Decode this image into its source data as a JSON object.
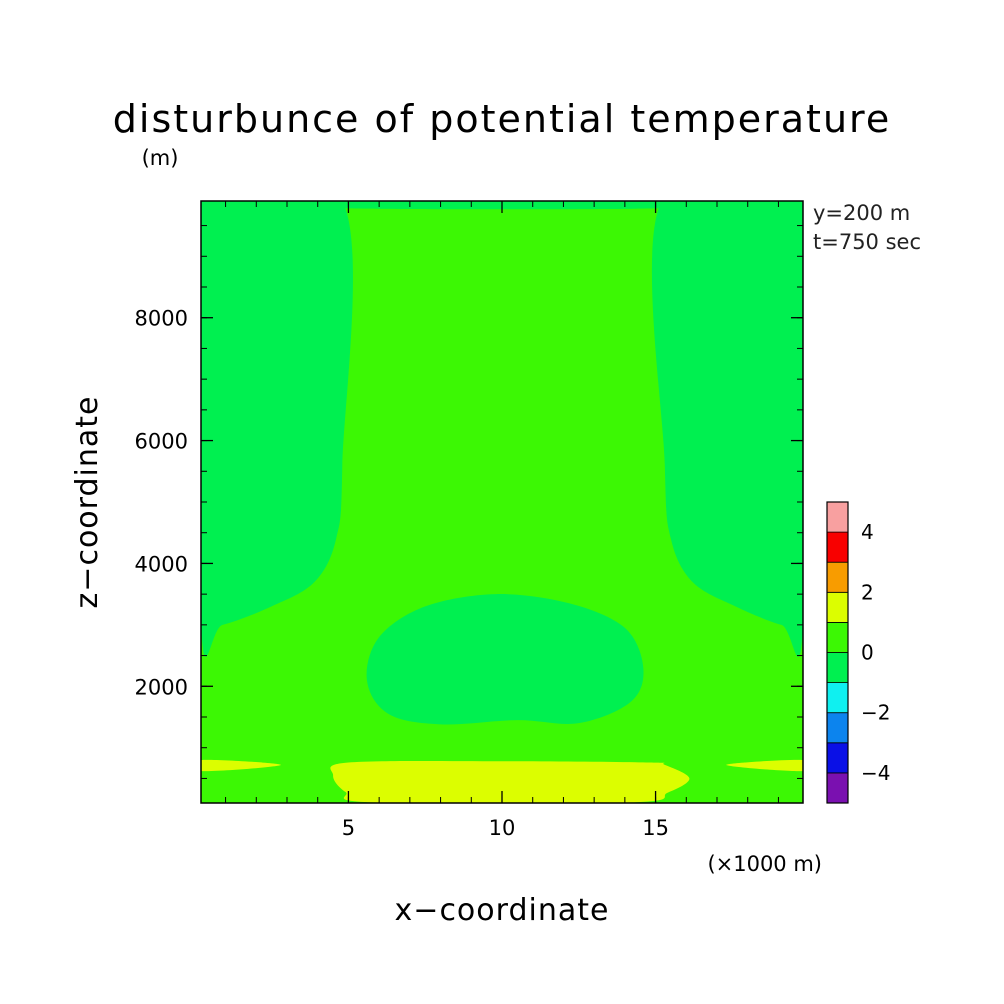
{
  "chart_data": {
    "type": "heatmap",
    "title": "disturbunce of potential temperature",
    "ylabel": "z−coordinate",
    "y_unit": "(m)",
    "xlabel": "x−coordinate",
    "x_unit": "(×1000 m)",
    "annotations": [
      "y=200 m",
      "t=750 sec"
    ],
    "xlim": [
      0.2,
      19.8
    ],
    "ylim": [
      100,
      9900
    ],
    "x_ticks": [
      {
        "value": 5,
        "label": "5"
      },
      {
        "value": 10,
        "label": "10"
      },
      {
        "value": 15,
        "label": "15"
      }
    ],
    "y_ticks": [
      {
        "value": 2000,
        "label": "2000"
      },
      {
        "value": 4000,
        "label": "4000"
      },
      {
        "value": 6000,
        "label": "6000"
      },
      {
        "value": 8000,
        "label": "8000"
      }
    ],
    "colorbar": {
      "levels": [
        {
          "from": -5,
          "to": -4,
          "color": "#7a10b0"
        },
        {
          "from": -4,
          "to": -3,
          "color": "#0a10e6"
        },
        {
          "from": -3,
          "to": -2,
          "color": "#0c84ee"
        },
        {
          "from": -2,
          "to": -1,
          "color": "#0ff0f0"
        },
        {
          "from": -1,
          "to": 0,
          "color": "#00f050"
        },
        {
          "from": 0,
          "to": 1,
          "color": "#3cf804"
        },
        {
          "from": 1,
          "to": 2,
          "color": "#dcfe00"
        },
        {
          "from": 2,
          "to": 3,
          "color": "#f89c00"
        },
        {
          "from": 3,
          "to": 4,
          "color": "#f80000"
        },
        {
          "from": 4,
          "to": 5,
          "color": "#f8a0a0"
        }
      ],
      "tick_labels": [
        {
          "value": 4,
          "label": "4"
        },
        {
          "value": 2,
          "label": "2"
        },
        {
          "value": 0,
          "label": "0"
        },
        {
          "value": -2,
          "label": "−2"
        },
        {
          "value": -4,
          "label": "−4"
        }
      ]
    },
    "background_level": "0 to 1",
    "regions": [
      {
        "name": "upper-left-negative",
        "level": "-1 to 0",
        "outline": [
          [
            0.2,
            9900
          ],
          [
            4.8,
            9900
          ],
          [
            4.8,
            5600
          ],
          [
            4.6,
            4400
          ],
          [
            3.9,
            3700
          ],
          [
            2.5,
            3300
          ],
          [
            0.9,
            3000
          ],
          [
            0.2,
            3000
          ]
        ]
      },
      {
        "name": "upper-right-negative",
        "level": "-1 to 0",
        "outline": [
          [
            19.8,
            9900
          ],
          [
            15.2,
            9900
          ],
          [
            15.3,
            5600
          ],
          [
            15.5,
            4400
          ],
          [
            16.2,
            3700
          ],
          [
            17.6,
            3300
          ],
          [
            19.1,
            3000
          ],
          [
            19.8,
            3000
          ]
        ]
      },
      {
        "name": "top-center-negative",
        "level": "-1 to 0",
        "outline": [
          [
            5.0,
            9900
          ],
          [
            15.0,
            9900
          ],
          [
            15.0,
            9780
          ],
          [
            5.0,
            9780
          ]
        ]
      },
      {
        "name": "central-negative-blob",
        "level": "-1 to 0",
        "outline": [
          [
            5.6,
            2100
          ],
          [
            6.0,
            2800
          ],
          [
            7.5,
            3300
          ],
          [
            9.8,
            3500
          ],
          [
            12.2,
            3350
          ],
          [
            14.0,
            2950
          ],
          [
            14.6,
            2300
          ],
          [
            14.2,
            1750
          ],
          [
            12.5,
            1400
          ],
          [
            10.5,
            1450
          ],
          [
            8.0,
            1380
          ],
          [
            6.3,
            1550
          ]
        ]
      },
      {
        "name": "bottom-center-positive",
        "level": "1 to 2",
        "outline": [
          [
            4.5,
            550
          ],
          [
            4.9,
            280
          ],
          [
            5.8,
            110
          ],
          [
            14.2,
            110
          ],
          [
            15.4,
            270
          ],
          [
            16.1,
            500
          ],
          [
            15.3,
            720
          ],
          [
            14.8,
            760
          ],
          [
            10.0,
            780
          ],
          [
            5.0,
            760
          ]
        ]
      },
      {
        "name": "bottom-left-positive",
        "level": "1 to 2",
        "outline": [
          [
            0.2,
            800
          ],
          [
            2.8,
            720
          ],
          [
            0.2,
            620
          ]
        ]
      },
      {
        "name": "bottom-right-positive",
        "level": "1 to 2",
        "outline": [
          [
            19.8,
            800
          ],
          [
            17.3,
            720
          ],
          [
            19.8,
            620
          ]
        ]
      }
    ]
  }
}
